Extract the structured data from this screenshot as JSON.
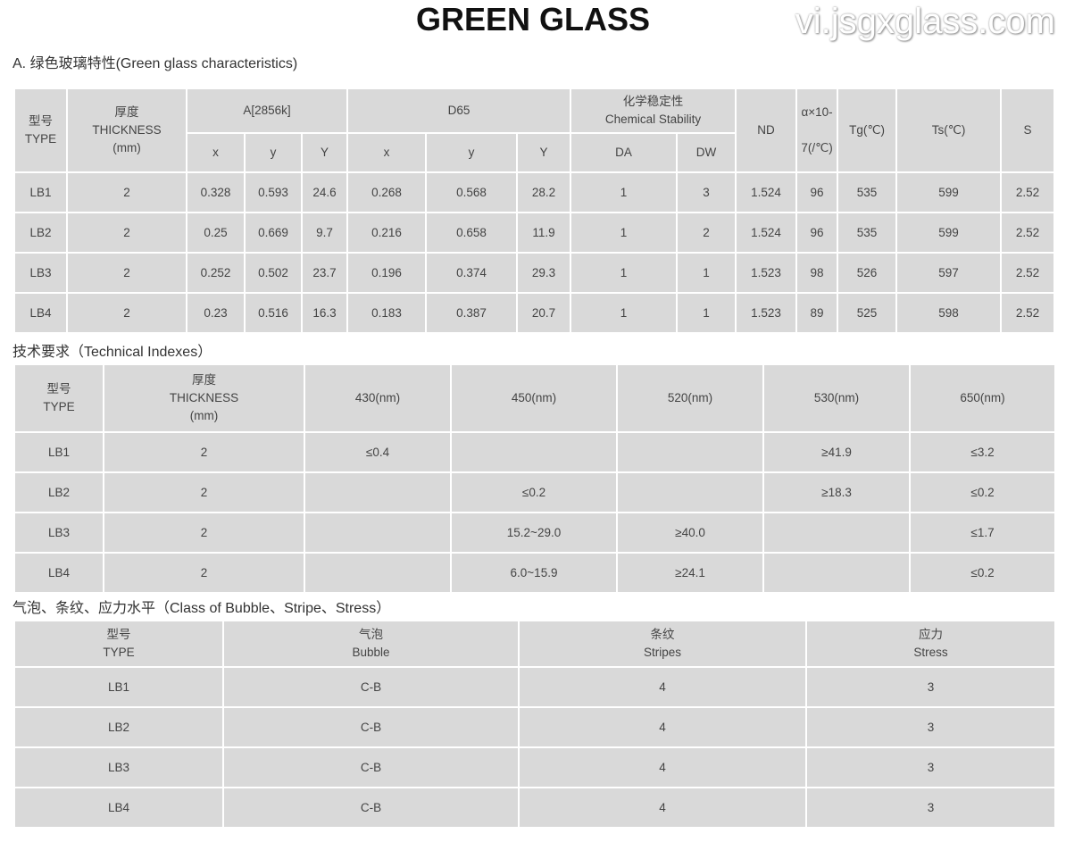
{
  "title": "GREEN GLASS",
  "t1": {
    "caption": "A. 绿色玻璃特性(Green glass characteristics)",
    "h_type": [
      "型号",
      "TYPE"
    ],
    "h_thick": [
      "厚度",
      "THICKNESS",
      "(mm)"
    ],
    "h_a": "A[2856k]",
    "h_d65": "D65",
    "h_chem": [
      "化学稳定性",
      "Chemical Stability"
    ],
    "h_nd": "ND",
    "h_alpha": [
      "α×10-",
      "7(/℃)"
    ],
    "h_tg": "Tg(℃)",
    "h_ts": "Ts(℃)",
    "h_s": "S",
    "sub": [
      "x",
      "y",
      "Y",
      "x",
      "y",
      "Y",
      "DA",
      "DW"
    ],
    "rows": [
      [
        "LB1",
        "2",
        "0.328",
        "0.593",
        "24.6",
        "0.268",
        "0.568",
        "28.2",
        "1",
        "3",
        "1.524",
        "96",
        "535",
        "599",
        "2.52"
      ],
      [
        "LB2",
        "2",
        "0.25",
        "0.669",
        "9.7",
        "0.216",
        "0.658",
        "11.9",
        "1",
        "2",
        "1.524",
        "96",
        "535",
        "599",
        "2.52"
      ],
      [
        "LB3",
        "2",
        "0.252",
        "0.502",
        "23.7",
        "0.196",
        "0.374",
        "29.3",
        "1",
        "1",
        "1.523",
        "98",
        "526",
        "597",
        "2.52"
      ],
      [
        "LB4",
        "2",
        "0.23",
        "0.516",
        "16.3",
        "0.183",
        "0.387",
        "20.7",
        "1",
        "1",
        "1.523",
        "89",
        "525",
        "598",
        "2.52"
      ]
    ]
  },
  "t2": {
    "caption": "技术要求（Technical Indexes）",
    "h_type": [
      "型号",
      "TYPE"
    ],
    "h_thick": [
      "厚度",
      "THICKNESS",
      "(mm)"
    ],
    "h_nm": [
      "430(nm)",
      "450(nm)",
      "520(nm)",
      "530(nm)",
      "650(nm)"
    ],
    "rows": [
      [
        "LB1",
        "2",
        "≤0.4",
        "",
        "",
        "≥41.9",
        "≤3.2"
      ],
      [
        "LB2",
        "2",
        "",
        "≤0.2",
        "",
        "≥18.3",
        "≤0.2"
      ],
      [
        "LB3",
        "2",
        "",
        "15.2~29.0",
        "≥40.0",
        "",
        "≤1.7"
      ],
      [
        "LB4",
        "2",
        "",
        "6.0~15.9",
        "≥24.1",
        "",
        "≤0.2"
      ]
    ]
  },
  "t3": {
    "caption": "气泡、条纹、应力水平（Class of Bubble、Stripe、Stress）",
    "headers": [
      [
        "型号",
        "TYPE"
      ],
      [
        "气泡",
        "Bubble"
      ],
      [
        "条纹",
        "Stripes"
      ],
      [
        "应力",
        "Stress"
      ]
    ],
    "rows": [
      [
        "LB1",
        "C-B",
        "4",
        "3"
      ],
      [
        "LB2",
        "C-B",
        "4",
        "3"
      ],
      [
        "LB3",
        "C-B",
        "4",
        "3"
      ],
      [
        "LB4",
        "C-B",
        "4",
        "3"
      ]
    ]
  },
  "watermark": "vi.jsgxglass.com"
}
